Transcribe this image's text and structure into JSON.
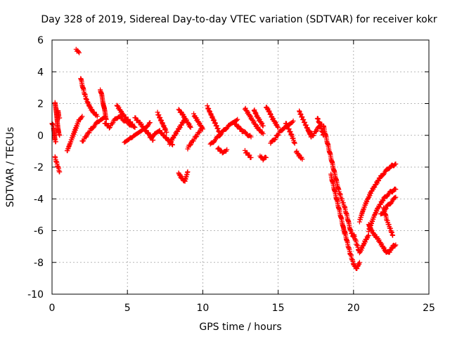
{
  "chart_data": {
    "type": "scatter",
    "title": "Day 328 of 2019, Sidereal Day-to-day VTEC variation (SDTVAR) for receiver kokr",
    "xlabel": "GPS time / hours",
    "ylabel": "SDTVAR / TECUs",
    "xlim": [
      0,
      25
    ],
    "ylim": [
      -10,
      6
    ],
    "xticks": [
      0,
      5,
      10,
      15,
      20,
      25
    ],
    "yticks": [
      -10,
      -8,
      -6,
      -4,
      -2,
      0,
      2,
      4,
      6
    ],
    "grid": true,
    "marker": "plus",
    "color": "#ff0000",
    "series": [
      {
        "name": "SDTVAR",
        "arcs": [
          {
            "x": [
              0.0,
              0.1,
              0.2,
              0.25
            ],
            "y": [
              0.8,
              0.5,
              -0.3,
              -0.4
            ]
          },
          {
            "x": [
              0.2,
              0.25,
              0.3,
              0.35,
              0.4,
              0.45,
              0.5
            ],
            "y": [
              2.0,
              1.7,
              1.3,
              0.8,
              0.4,
              0.1,
              0.0
            ]
          },
          {
            "x": [
              0.2,
              0.3,
              0.4,
              0.5
            ],
            "y": [
              -1.4,
              -1.7,
              -2.0,
              -2.3
            ]
          },
          {
            "x": [
              0.4,
              0.45,
              0.5
            ],
            "y": [
              1.5,
              1.2,
              1.1
            ]
          },
          {
            "x": [
              1.0,
              1.2,
              1.4,
              1.6,
              1.8,
              2.0
            ],
            "y": [
              -1.0,
              -0.5,
              0.0,
              0.5,
              1.0,
              1.2
            ]
          },
          {
            "x": [
              1.6,
              1.7,
              1.8
            ],
            "y": [
              5.4,
              5.3,
              5.2
            ]
          },
          {
            "x": [
              1.9,
              2.0,
              2.1,
              2.2,
              2.3,
              2.5,
              2.7,
              3.0
            ],
            "y": [
              3.6,
              3.2,
              2.8,
              2.5,
              2.2,
              1.8,
              1.5,
              1.2
            ]
          },
          {
            "x": [
              2.0,
              2.3,
              2.6,
              2.9,
              3.2,
              3.5
            ],
            "y": [
              -0.4,
              0.0,
              0.4,
              0.7,
              1.0,
              1.2
            ]
          },
          {
            "x": [
              3.2,
              3.3,
              3.4,
              3.5,
              3.6
            ],
            "y": [
              2.9,
              2.5,
              2.0,
              1.5,
              1.0
            ]
          },
          {
            "x": [
              3.5,
              3.8,
              4.1,
              4.4,
              4.7,
              5.0,
              5.3
            ],
            "y": [
              0.8,
              0.5,
              0.9,
              1.2,
              1.0,
              0.8,
              0.6
            ]
          },
          {
            "x": [
              4.3,
              4.5,
              4.7,
              4.9,
              5.1,
              5.3,
              5.5
            ],
            "y": [
              1.9,
              1.6,
              1.3,
              1.1,
              0.9,
              0.7,
              0.5
            ]
          },
          {
            "x": [
              4.8,
              5.1,
              5.4,
              5.7,
              6.0,
              6.3,
              6.5
            ],
            "y": [
              -0.5,
              -0.3,
              0.0,
              0.2,
              0.4,
              0.6,
              0.8
            ]
          },
          {
            "x": [
              5.5,
              5.7,
              5.9,
              6.1,
              6.3,
              6.5,
              6.7
            ],
            "y": [
              1.1,
              0.9,
              0.7,
              0.4,
              0.2,
              0.0,
              -0.3
            ]
          },
          {
            "x": [
              6.5,
              6.8,
              7.1,
              7.4,
              7.7,
              8.0
            ],
            "y": [
              -0.2,
              0.1,
              0.3,
              0.0,
              -0.3,
              -0.6
            ]
          },
          {
            "x": [
              7.0,
              7.2,
              7.4,
              7.6
            ],
            "y": [
              1.4,
              1.0,
              0.6,
              0.2
            ]
          },
          {
            "x": [
              7.8,
              8.0,
              8.2,
              8.4,
              8.6,
              8.8
            ],
            "y": [
              -0.5,
              -0.2,
              0.1,
              0.4,
              0.7,
              1.0
            ]
          },
          {
            "x": [
              8.4,
              8.6,
              8.8,
              9.0,
              9.2
            ],
            "y": [
              1.6,
              1.4,
              1.1,
              0.8,
              0.5
            ]
          },
          {
            "x": [
              8.4,
              8.6,
              8.8,
              9.0
            ],
            "y": [
              -2.4,
              -2.7,
              -2.9,
              -2.3
            ]
          },
          {
            "x": [
              9.0,
              9.3,
              9.6,
              9.9
            ],
            "y": [
              -0.8,
              -0.4,
              0.0,
              0.4
            ]
          },
          {
            "x": [
              9.4,
              9.6,
              9.8,
              10.0
            ],
            "y": [
              1.3,
              1.0,
              0.7,
              0.4
            ]
          },
          {
            "x": [
              10.3,
              10.5,
              10.7,
              10.9,
              11.1
            ],
            "y": [
              1.8,
              1.4,
              1.0,
              0.6,
              0.2
            ]
          },
          {
            "x": [
              10.5,
              10.8,
              11.1,
              11.4,
              11.7,
              12.0,
              12.3
            ],
            "y": [
              -0.6,
              -0.3,
              0.0,
              0.3,
              0.6,
              0.8,
              1.0
            ]
          },
          {
            "x": [
              11.0,
              11.2,
              11.4,
              11.6
            ],
            "y": [
              -0.8,
              -1.0,
              -1.1,
              -0.9
            ]
          },
          {
            "x": [
              12.0,
              12.3,
              12.6,
              12.9,
              13.2
            ],
            "y": [
              0.8,
              0.6,
              0.3,
              0.1,
              -0.1
            ]
          },
          {
            "x": [
              12.8,
              13.0,
              13.2
            ],
            "y": [
              -1.0,
              -1.2,
              -1.4
            ]
          },
          {
            "x": [
              12.8,
              13.0,
              13.2,
              13.4,
              13.6,
              13.8,
              14.0
            ],
            "y": [
              1.7,
              1.4,
              1.1,
              0.8,
              0.5,
              0.3,
              0.1
            ]
          },
          {
            "x": [
              13.4,
              13.6,
              13.8,
              14.0
            ],
            "y": [
              1.6,
              1.2,
              0.9,
              0.6
            ]
          },
          {
            "x": [
              13.8,
              14.0,
              14.2
            ],
            "y": [
              -1.3,
              -1.5,
              -1.4
            ]
          },
          {
            "x": [
              14.2,
              14.4,
              14.6,
              14.8,
              15.0
            ],
            "y": [
              1.8,
              1.5,
              1.1,
              0.8,
              0.5
            ]
          },
          {
            "x": [
              14.5,
              14.8,
              15.1,
              15.4,
              15.7,
              16.0
            ],
            "y": [
              -0.5,
              -0.2,
              0.2,
              0.5,
              0.7,
              0.9
            ]
          },
          {
            "x": [
              15.5,
              15.7,
              15.9,
              16.1
            ],
            "y": [
              0.8,
              0.4,
              0.0,
              -0.5
            ]
          },
          {
            "x": [
              16.2,
              16.4,
              16.6
            ],
            "y": [
              -1.0,
              -1.3,
              -1.5
            ]
          },
          {
            "x": [
              16.4,
              16.6,
              16.8,
              17.0,
              17.2
            ],
            "y": [
              1.5,
              1.1,
              0.7,
              0.3,
              -0.1
            ]
          },
          {
            "x": [
              17.0,
              17.3,
              17.6,
              17.9
            ],
            "y": [
              0.3,
              0.0,
              0.4,
              0.7
            ]
          },
          {
            "x": [
              17.6,
              17.8,
              18.0
            ],
            "y": [
              1.1,
              0.6,
              0.0
            ]
          },
          {
            "x": [
              18.0,
              18.1,
              18.2,
              18.3,
              18.4,
              18.5,
              18.6,
              18.7,
              18.8,
              18.9,
              19.0,
              19.2
            ],
            "y": [
              0.6,
              0.2,
              -0.2,
              -0.6,
              -1.0,
              -1.4,
              -1.8,
              -2.2,
              -2.6,
              -3.0,
              -3.4,
              -4.0
            ]
          },
          {
            "x": [
              18.5,
              18.6,
              18.7,
              18.8,
              18.9,
              19.0,
              19.1,
              19.2,
              19.3,
              19.4
            ],
            "y": [
              -2.5,
              -2.9,
              -3.3,
              -3.7,
              -4.1,
              -4.5,
              -4.9,
              -5.3,
              -5.7,
              -6.2
            ]
          },
          {
            "x": [
              19.2,
              19.4,
              19.6,
              19.8,
              20.0
            ],
            "y": [
              -4.0,
              -4.5,
              -5.2,
              -6.0,
              -6.4
            ]
          },
          {
            "x": [
              19.4,
              19.6,
              19.8,
              20.0,
              20.2,
              20.4
            ],
            "y": [
              -6.0,
              -6.8,
              -7.5,
              -8.1,
              -8.4,
              -8.0
            ]
          },
          {
            "x": [
              20.0,
              20.2,
              20.4,
              20.6,
              20.8,
              21.0
            ],
            "y": [
              -6.2,
              -6.8,
              -7.4,
              -7.0,
              -6.6,
              -6.3
            ]
          },
          {
            "x": [
              20.4,
              20.6,
              20.8,
              21.0,
              21.2,
              21.4,
              21.6,
              21.8,
              22.0,
              22.2,
              22.4,
              22.6,
              22.8
            ],
            "y": [
              -5.4,
              -4.8,
              -4.3,
              -3.9,
              -3.5,
              -3.2,
              -2.9,
              -2.6,
              -2.4,
              -2.2,
              -2.0,
              -1.9,
              -1.8
            ]
          },
          {
            "x": [
              21.0,
              21.2,
              21.4,
              21.6,
              21.8,
              22.0,
              22.2,
              22.4,
              22.6,
              22.8
            ],
            "y": [
              -6.0,
              -5.5,
              -5.0,
              -4.6,
              -4.3,
              -4.0,
              -3.8,
              -3.6,
              -3.5,
              -3.4
            ]
          },
          {
            "x": [
              21.0,
              21.2,
              21.4,
              21.6,
              21.8,
              22.0,
              22.2,
              22.4,
              22.6,
              22.8
            ],
            "y": [
              -5.6,
              -6.0,
              -6.3,
              -6.5,
              -6.8,
              -7.1,
              -7.4,
              -7.3,
              -7.0,
              -6.9
            ]
          },
          {
            "x": [
              21.8,
              22.0,
              22.2,
              22.4,
              22.6,
              22.8
            ],
            "y": [
              -5.0,
              -4.8,
              -4.5,
              -4.3,
              -4.1,
              -3.9
            ]
          },
          {
            "x": [
              22.0,
              22.2,
              22.4,
              22.6
            ],
            "y": [
              -4.6,
              -5.3,
              -5.8,
              -6.3
            ]
          }
        ]
      }
    ]
  }
}
